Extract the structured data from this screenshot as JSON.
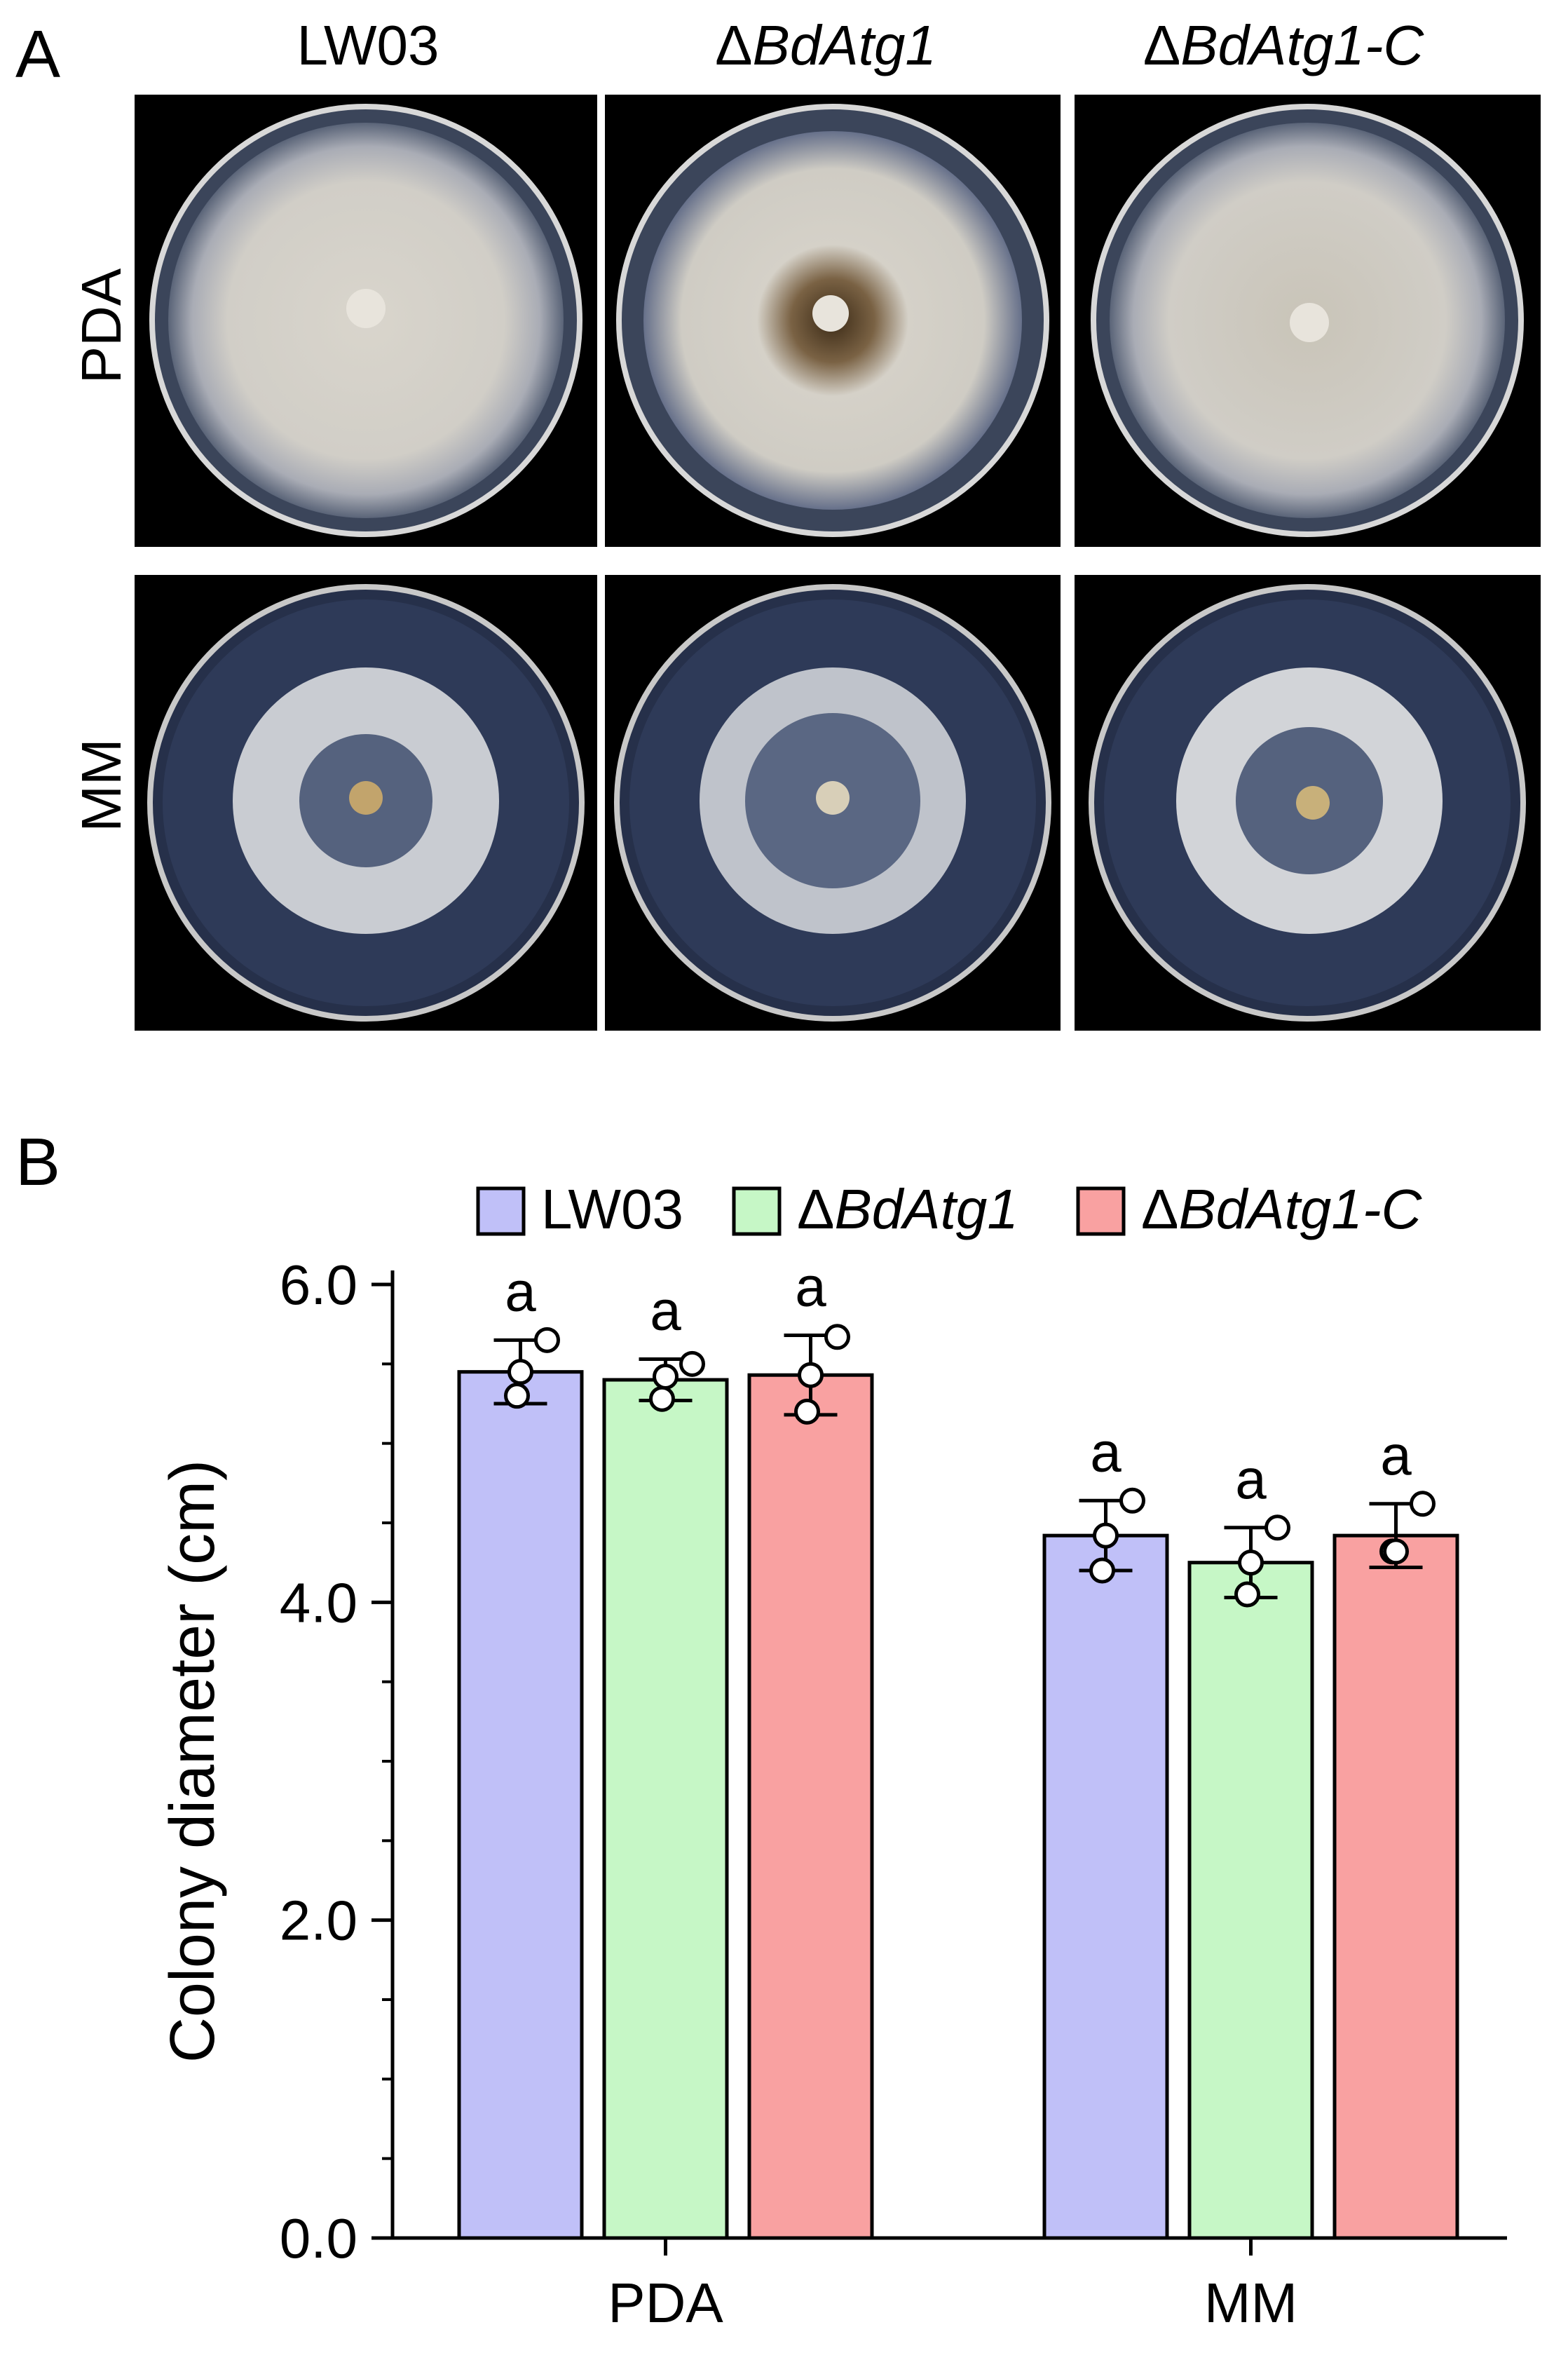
{
  "panelA": {
    "letter": "A",
    "columns": [
      {
        "prefix": "",
        "italic": "",
        "plain": "LW03"
      },
      {
        "prefix": "Δ",
        "italic": "BdAtg1",
        "plain": ""
      },
      {
        "prefix": "Δ",
        "italic": "BdAtg1-C",
        "plain": ""
      }
    ],
    "rows": [
      "PDA",
      "MM"
    ]
  },
  "panelB": {
    "letter": "B"
  },
  "chart_data": {
    "type": "bar",
    "ylabel": "Colony diameter (cm)",
    "ylim": [
      0,
      6.0
    ],
    "yticks": [
      "0.0",
      "2.0",
      "4.0",
      "6.0"
    ],
    "categories": [
      "PDA",
      "MM"
    ],
    "series": [
      {
        "name": "LW03",
        "legend_prefix": "",
        "legend_italic": "",
        "legend_plain": "LW03",
        "color": "#c0c0f8",
        "values": [
          5.45,
          4.42
        ],
        "errors": [
          0.2,
          0.22
        ],
        "points": [
          [
            5.3,
            5.45,
            5.65
          ],
          [
            4.2,
            4.42,
            4.64
          ]
        ],
        "letters": [
          "a",
          "a"
        ]
      },
      {
        "name": "ΔBdAtg1",
        "legend_prefix": "Δ",
        "legend_italic": "BdAtg1",
        "legend_plain": "",
        "color": "#c6f7c6",
        "values": [
          5.4,
          4.25
        ],
        "errors": [
          0.13,
          0.22
        ],
        "points": [
          [
            5.28,
            5.42,
            5.5
          ],
          [
            4.05,
            4.25,
            4.47
          ]
        ],
        "letters": [
          "a",
          "a"
        ]
      },
      {
        "name": "ΔBdAtg1-C",
        "legend_prefix": "Δ",
        "legend_italic": "BdAtg1-C",
        "legend_plain": "",
        "color": "#f9a1a1",
        "values": [
          5.43,
          4.42
        ],
        "errors": [
          0.25,
          0.2
        ],
        "points": [
          [
            5.2,
            5.43,
            5.67
          ],
          [
            4.32,
            4.32,
            4.62
          ]
        ],
        "letters": [
          "a",
          "a"
        ]
      }
    ],
    "legend_position": "top"
  }
}
